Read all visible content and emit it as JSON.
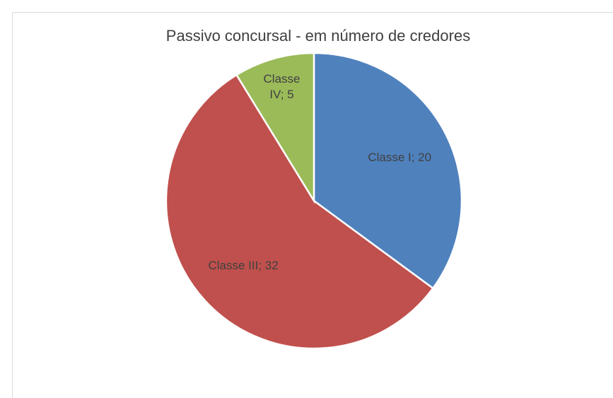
{
  "chart_data": {
    "type": "pie",
    "title": "Passivo concursal - em número de credores",
    "values": [
      20,
      32,
      5
    ],
    "value_labels": [
      "Classe I; 20",
      "Classe III; 32",
      "Classe IV; 5"
    ],
    "colors": [
      "#4f81bd",
      "#c0504d",
      "#9bbb59"
    ]
  }
}
